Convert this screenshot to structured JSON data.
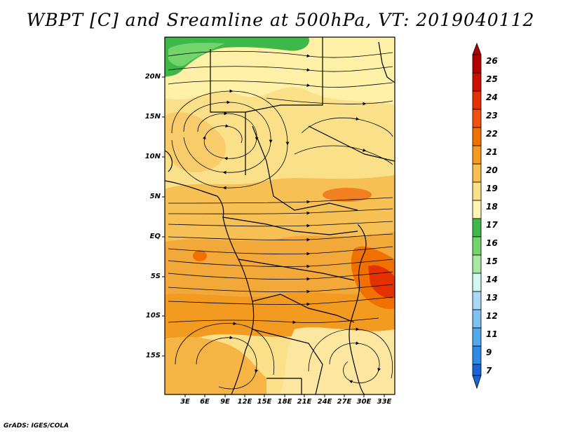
{
  "title": "WBPT [C] and Sreamline at 500hPa, VT: 2019040112",
  "credit": "GrADS: IGES/COLA",
  "map": {
    "lon_labels": [
      "3E",
      "6E",
      "9E",
      "12E",
      "15E",
      "18E",
      "21E",
      "24E",
      "27E",
      "30E",
      "33E"
    ],
    "lat_labels": [
      "20N",
      "15N",
      "10N",
      "5N",
      "EQ",
      "5S",
      "10S",
      "15S"
    ]
  },
  "colorbar": {
    "labels": [
      "26",
      "25",
      "24",
      "23",
      "22",
      "21",
      "20",
      "19",
      "18",
      "17",
      "16",
      "15",
      "14",
      "13",
      "12",
      "11",
      "9",
      "7"
    ],
    "colors": [
      "#b00000",
      "#cc1000",
      "#e53000",
      "#f05010",
      "#f07000",
      "#f39a20",
      "#f7bf50",
      "#fbe08a",
      "#fff4b0",
      "#3fb84a",
      "#72d46a",
      "#a6e8a0",
      "#d2f6f0",
      "#a9d8f4",
      "#7ec2f2",
      "#52a8ee",
      "#2f8ae6",
      "#1a64da"
    ]
  }
}
